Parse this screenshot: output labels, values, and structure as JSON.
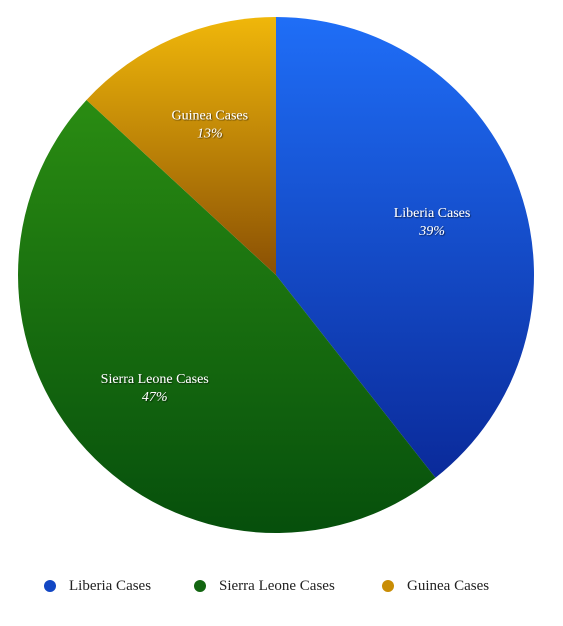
{
  "chart_data": {
    "type": "pie",
    "title": "",
    "legend_position": "bottom",
    "slices": [
      {
        "label": "Liberia Cases",
        "value": 39,
        "value_label": "39%",
        "color": "#1247c4"
      },
      {
        "label": "Sierra Leone Cases",
        "value": 47,
        "value_label": "47%",
        "color": "#136611"
      },
      {
        "label": "Guinea Cases",
        "value": 13,
        "value_label": "13%",
        "color": "#c98d05"
      }
    ]
  }
}
